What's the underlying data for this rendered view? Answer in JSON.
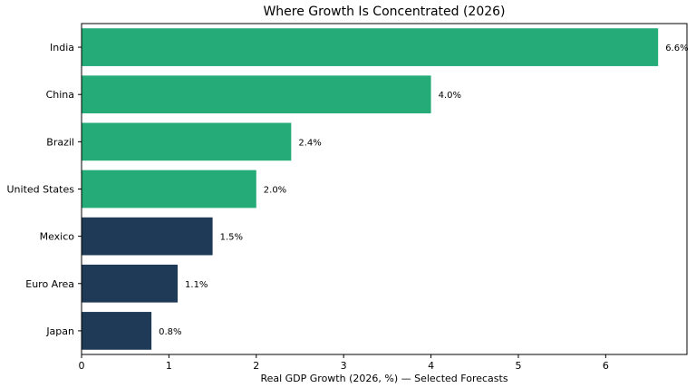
{
  "chart_data": {
    "type": "bar",
    "orientation": "horizontal",
    "title": "Where Growth Is Concentrated (2026)",
    "xlabel": "Real GDP Growth (2026, %) — Selected Forecasts",
    "ylabel": "",
    "xlim": [
      0,
      6.93
    ],
    "xticks": [
      0,
      1,
      2,
      3,
      4,
      5,
      6
    ],
    "categories": [
      "India",
      "China",
      "Brazil",
      "United States",
      "Mexico",
      "Euro Area",
      "Japan"
    ],
    "values": [
      6.6,
      4.0,
      2.4,
      2.0,
      1.5,
      1.1,
      0.8
    ],
    "value_labels": [
      "6.6%",
      "4.0%",
      "2.4%",
      "2.0%",
      "1.5%",
      "1.1%",
      "0.8%"
    ],
    "colors": {
      "high": "#24ab78",
      "low": "#1e3a56"
    },
    "bar_colors": [
      "#24ab78",
      "#24ab78",
      "#24ab78",
      "#24ab78",
      "#1e3a56",
      "#1e3a56",
      "#1e3a56"
    ],
    "grid": false,
    "legend": "none"
  }
}
